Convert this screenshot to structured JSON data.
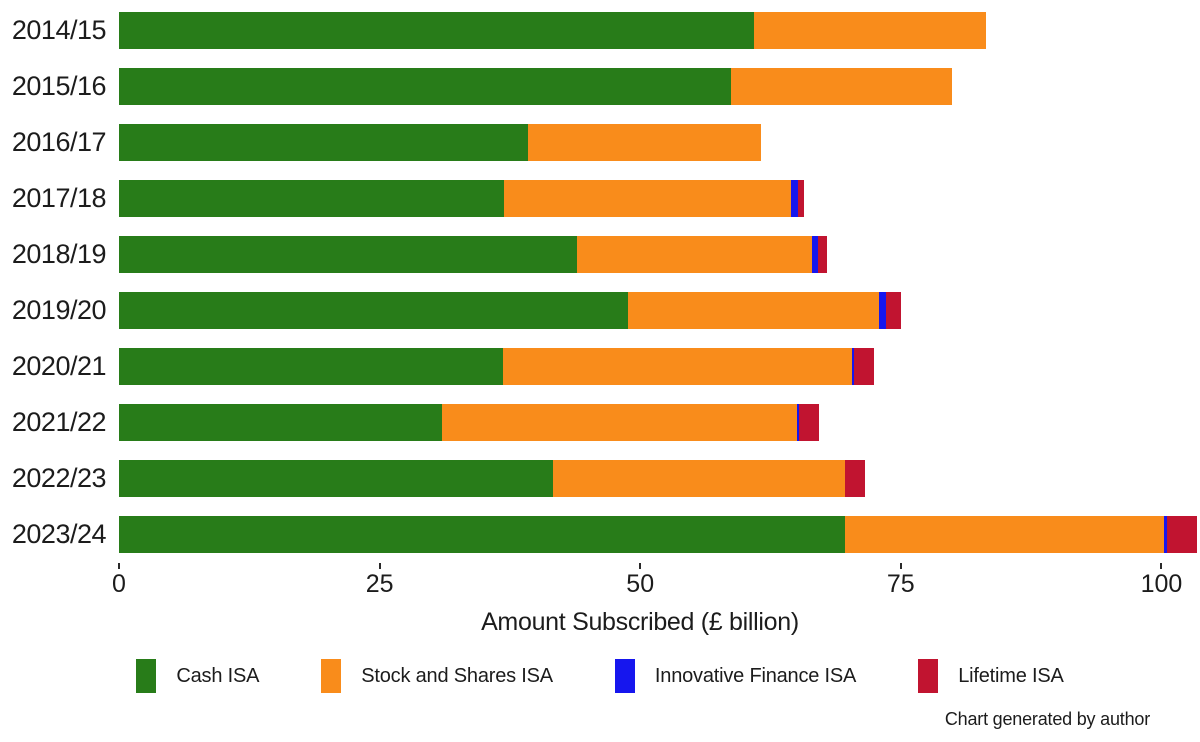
{
  "chart_data": {
    "type": "bar",
    "orientation": "horizontal",
    "stacked": true,
    "categories": [
      "2014/15",
      "2015/16",
      "2016/17",
      "2017/18",
      "2018/19",
      "2019/20",
      "2020/21",
      "2021/22",
      "2022/23",
      "2023/24"
    ],
    "series": [
      {
        "name": "Cash ISA",
        "color": "#287c19",
        "values": [
          60.9,
          58.7,
          39.2,
          36.9,
          43.9,
          48.8,
          36.8,
          31.0,
          41.6,
          69.6
        ]
      },
      {
        "name": "Stock and Shares ISA",
        "color": "#f98c1b",
        "values": [
          22.3,
          21.2,
          22.4,
          27.6,
          22.6,
          24.1,
          33.5,
          34.0,
          28.0,
          30.6
        ]
      },
      {
        "name": "Innovative Finance ISA",
        "color": "#1616ee",
        "values": [
          0,
          0,
          0,
          0.6,
          0.6,
          0.7,
          0.2,
          0.2,
          0,
          0.3
        ]
      },
      {
        "name": "Lifetime ISA",
        "color": "#c11430",
        "values": [
          0,
          0,
          0,
          0.6,
          0.8,
          1.4,
          1.9,
          2.0,
          2.0,
          2.9
        ]
      }
    ],
    "xlabel": "Amount Subscribed (£ billion)",
    "x_ticks": [
      0,
      25,
      50,
      75,
      100
    ],
    "xlim": [
      0,
      103.7
    ],
    "grid": false,
    "legend_position": "bottom",
    "note": "Chart generated by author"
  }
}
